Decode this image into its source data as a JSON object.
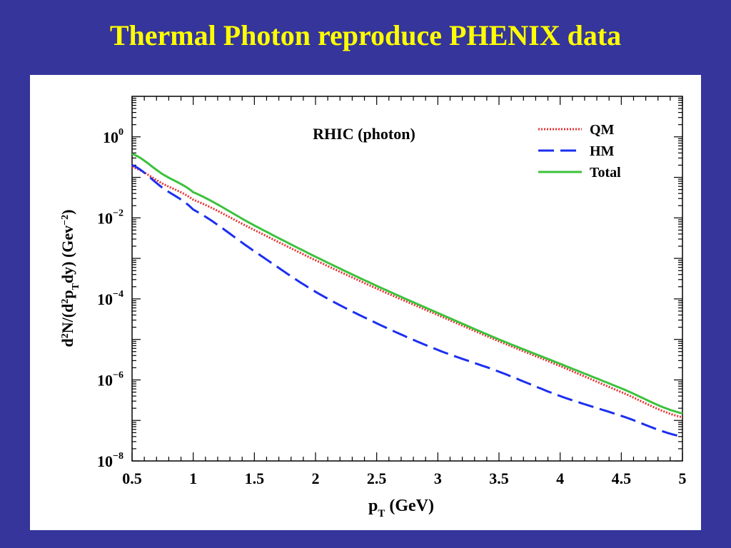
{
  "slide": {
    "title": "Thermal Photon reproduce PHENIX data"
  },
  "colors": {
    "background": "#35359b",
    "title": "#ffff00",
    "qm": "#e83030",
    "hm": "#1c2ff0",
    "total": "#3cc23c"
  },
  "chart_data": {
    "type": "line",
    "title": "RHIC (photon)",
    "xlabel_main": "p",
    "xlabel_sub": "T",
    "xlabel_rest": " (GeV)",
    "ylabel_parts": {
      "a": "d",
      "a_sup": "2",
      "b": "N/(d",
      "b_sup": "2",
      "c": "p",
      "c_sub": "T",
      "d": "dy)  (Gev",
      "d_sup": "−2",
      "e": ")"
    },
    "x_range": [
      0.5,
      5
    ],
    "y_range": [
      1e-08,
      10
    ],
    "y_scale": "log",
    "x_ticks": [
      {
        "value": 0.5,
        "label": "0.5"
      },
      {
        "value": 1,
        "label": "1"
      },
      {
        "value": 1.5,
        "label": "1.5"
      },
      {
        "value": 2,
        "label": "2"
      },
      {
        "value": 2.5,
        "label": "2.5"
      },
      {
        "value": 3,
        "label": "3"
      },
      {
        "value": 3.5,
        "label": "3.5"
      },
      {
        "value": 4,
        "label": "4"
      },
      {
        "value": 4.5,
        "label": "4.5"
      },
      {
        "value": 5,
        "label": "5"
      }
    ],
    "y_ticks": [
      {
        "value": 1,
        "base": "10",
        "exp": "0"
      },
      {
        "value": 0.01,
        "base": "10",
        "exp": "−2"
      },
      {
        "value": 0.0001,
        "base": "10",
        "exp": "−4"
      },
      {
        "value": 1e-06,
        "base": "10",
        "exp": "−6"
      },
      {
        "value": 1e-08,
        "base": "10",
        "exp": "−8"
      }
    ],
    "legend_position": "top-right",
    "grid": false,
    "x": [
      0.5,
      0.75,
      1.0,
      1.5,
      2.0,
      2.5,
      3.0,
      3.5,
      4.0,
      4.5,
      5.0
    ],
    "series": [
      {
        "name": "QM",
        "style": "dotted",
        "color": "#e83030",
        "values": [
          0.18,
          0.07,
          0.028,
          0.005,
          0.0009,
          0.00018,
          4e-05,
          9e-06,
          2.2e-06,
          5e-07,
          1.2e-07
        ]
      },
      {
        "name": "HM",
        "style": "dashed",
        "color": "#1c2ff0",
        "values": [
          0.2,
          0.055,
          0.016,
          0.0015,
          0.00015,
          2.5e-05,
          5.5e-06,
          1.6e-06,
          4e-07,
          1.3e-07,
          4e-08
        ]
      },
      {
        "name": "Total",
        "style": "solid",
        "color": "#3cc23c",
        "values": [
          0.38,
          0.12,
          0.043,
          0.0065,
          0.0011,
          0.00021,
          4.5e-05,
          1e-05,
          2.5e-06,
          6.2e-07,
          1.5e-07
        ]
      }
    ]
  }
}
